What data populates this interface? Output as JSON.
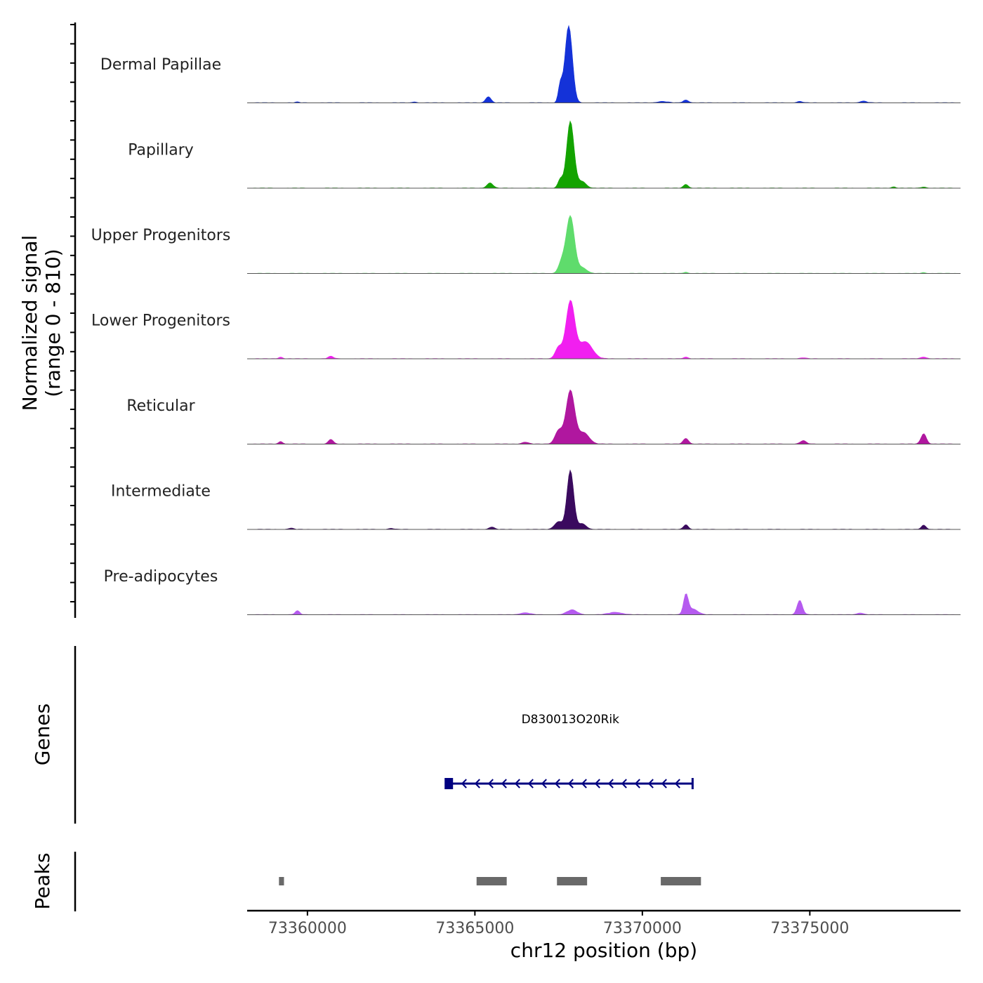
{
  "chart_data": {
    "type": "area",
    "chromosome": "chr12",
    "x_range": [
      73358200,
      73379500
    ],
    "y_axis_title_line1": "Normalized signal",
    "y_axis_title_line2": "(range 0 - 810)",
    "y_range": [
      0,
      810
    ],
    "x_axis_title": "chr12 position (bp)",
    "x_ticks": [
      73360000,
      73365000,
      73370000,
      73375000
    ],
    "x_tick_labels": [
      "73360000",
      "73365000",
      "73370000",
      "73375000"
    ],
    "tracks": [
      {
        "name": "Dermal Papillae",
        "color": "#1432d8",
        "peaks": [
          [
            73365400,
            65,
            80
          ],
          [
            73367550,
            180,
            60
          ],
          [
            73367800,
            810,
            110
          ],
          [
            73363200,
            10,
            60
          ],
          [
            73359700,
            8,
            60
          ],
          [
            73371300,
            30,
            80
          ],
          [
            73376600,
            18,
            100
          ],
          [
            73374700,
            14,
            80
          ],
          [
            73370600,
            14,
            150
          ]
        ]
      },
      {
        "name": "Papillary",
        "color": "#13a300",
        "peaks": [
          [
            73365450,
            55,
            90
          ],
          [
            73367550,
            90,
            70
          ],
          [
            73367850,
            700,
            110
          ],
          [
            73368200,
            70,
            120
          ],
          [
            73371300,
            40,
            70
          ],
          [
            73377500,
            15,
            60
          ],
          [
            73378400,
            12,
            80
          ]
        ]
      },
      {
        "name": "Upper Progenitors",
        "color": "#5fdc6c",
        "peaks": [
          [
            73367600,
            120,
            100
          ],
          [
            73367850,
            600,
            120
          ],
          [
            73368200,
            60,
            140
          ],
          [
            73371300,
            14,
            60
          ],
          [
            73378400,
            10,
            60
          ]
        ]
      },
      {
        "name": "Lower Progenitors",
        "color": "#f11ff0",
        "peaks": [
          [
            73367500,
            120,
            100
          ],
          [
            73367850,
            600,
            130
          ],
          [
            73368300,
            180,
            200
          ],
          [
            73360700,
            25,
            80
          ],
          [
            73359200,
            18,
            60
          ],
          [
            73371300,
            18,
            70
          ],
          [
            73378400,
            18,
            90
          ],
          [
            73374800,
            10,
            80
          ]
        ]
      },
      {
        "name": "Reticular",
        "color": "#b0179f",
        "peaks": [
          [
            73367500,
            140,
            110
          ],
          [
            73367850,
            560,
            130
          ],
          [
            73368250,
            120,
            160
          ],
          [
            73360700,
            50,
            70
          ],
          [
            73359200,
            28,
            60
          ],
          [
            73371300,
            60,
            80
          ],
          [
            73374800,
            35,
            90
          ],
          [
            73378400,
            110,
            80
          ],
          [
            73366500,
            20,
            100
          ]
        ]
      },
      {
        "name": "Intermediate",
        "color": "#3a0a5e",
        "peaks": [
          [
            73367500,
            80,
            120
          ],
          [
            73367850,
            620,
            100
          ],
          [
            73368200,
            60,
            120
          ],
          [
            73365500,
            25,
            80
          ],
          [
            73371300,
            50,
            70
          ],
          [
            73378400,
            45,
            70
          ],
          [
            73359500,
            12,
            80
          ],
          [
            73362500,
            10,
            80
          ]
        ]
      },
      {
        "name": "Pre-adipocytes",
        "color": "#b55aef",
        "peaks": [
          [
            73359700,
            40,
            70
          ],
          [
            73367900,
            50,
            150
          ],
          [
            73366500,
            20,
            150
          ],
          [
            73371300,
            200,
            70
          ],
          [
            73371500,
            60,
            150
          ],
          [
            73374700,
            150,
            80
          ],
          [
            73369200,
            25,
            200
          ],
          [
            73376500,
            18,
            100
          ]
        ]
      }
    ],
    "genes_label": "Genes",
    "gene": {
      "name": "D830013O20Rik",
      "start": 73364200,
      "end": 73371500,
      "strand": "-",
      "color": "#000080"
    },
    "peaks_label": "Peaks",
    "peak_regions": [
      [
        73359150,
        73359300
      ],
      [
        73365050,
        73365950
      ],
      [
        73367450,
        73368350
      ],
      [
        73370550,
        73371750
      ]
    ],
    "peak_color": "#696969"
  }
}
